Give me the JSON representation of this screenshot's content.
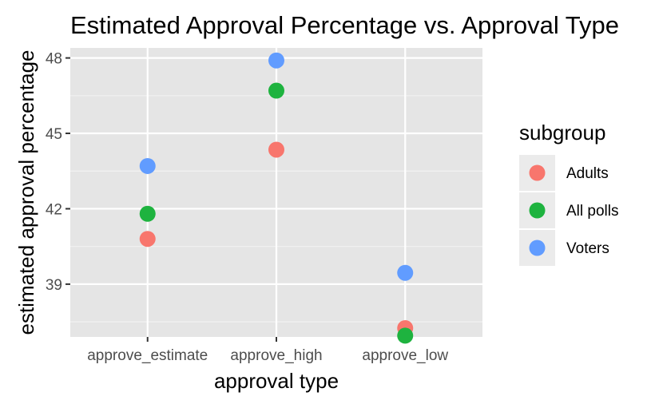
{
  "chart_data": {
    "type": "scatter",
    "title": "Estimated Approval Percentage vs. Approval Type",
    "xlabel": "approval type",
    "ylabel": "estimated approval percentage",
    "categories": [
      "approve_estimate",
      "approve_high",
      "approve_low"
    ],
    "ylim": [
      36.9,
      48.4
    ],
    "yticks": [
      39,
      42,
      45,
      48
    ],
    "grid": true,
    "legend": {
      "title": "subgroup",
      "position": "right"
    },
    "series": [
      {
        "name": "Adults",
        "color": "#F8766D",
        "values": [
          40.8,
          44.35,
          37.25
        ]
      },
      {
        "name": "All polls",
        "color": "#1EB33F",
        "values": [
          41.8,
          46.7,
          36.95
        ]
      },
      {
        "name": "Voters",
        "color": "#619CFF",
        "values": [
          43.7,
          47.9,
          39.45
        ]
      }
    ]
  }
}
